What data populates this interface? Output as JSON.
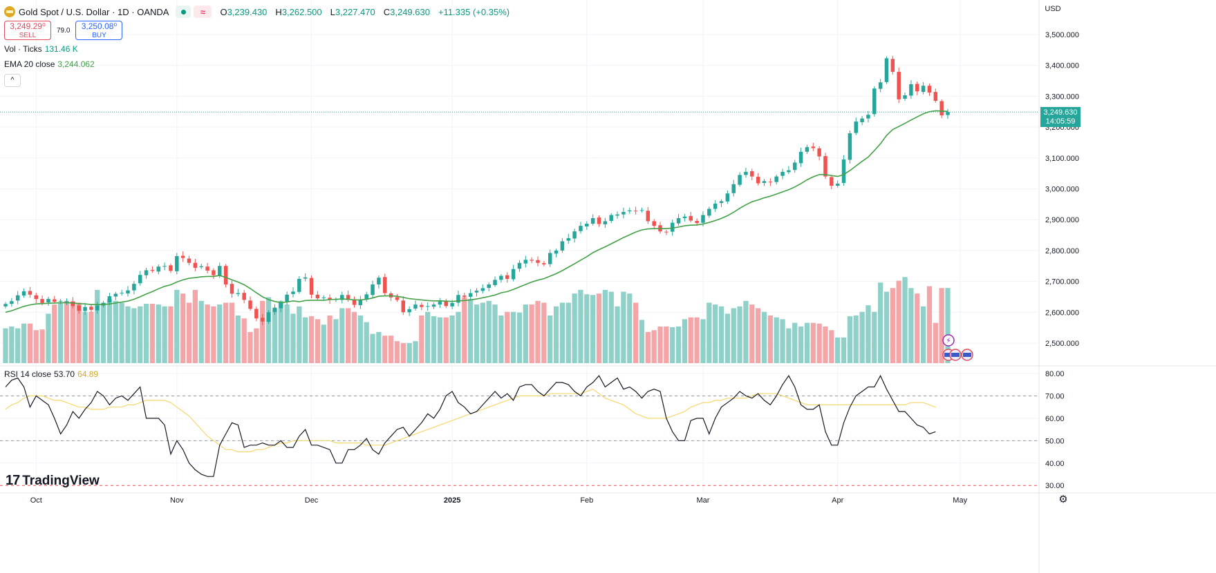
{
  "header": {
    "symbol": "Gold Spot / U.S. Dollar · 1D · OANDA",
    "wave_icon": "≈",
    "o_label": "O",
    "o_value": "3,239.430",
    "h_label": "H",
    "h_value": "3,262.500",
    "l_label": "L",
    "l_value": "3,227.470",
    "c_label": "C",
    "c_value": "3,249.630",
    "change": "+11.335 (+0.35%)"
  },
  "trade": {
    "sell_price": "3,249.29⁰",
    "sell_label": "SELL",
    "spread": "79.0",
    "buy_price": "3,250.08⁰",
    "buy_label": "BUY"
  },
  "indicators": {
    "vol_label": "Vol · Ticks",
    "vol_value": "131.46 K",
    "ema_label": "EMA 20 close",
    "ema_value": "3,244.062",
    "collapse_icon": "^",
    "rsi_label": "RSI 14 close",
    "rsi_value": "53.70",
    "rsi_ma_value": "64.89"
  },
  "axis": {
    "currency": "USD",
    "last_price": "3,249.630",
    "countdown": "14:05:59"
  },
  "brand": {
    "mark": "17",
    "name": "TradingView"
  },
  "icons": {
    "settings": "gear-icon",
    "events": [
      "lightning-icon",
      "us-flag-icon",
      "us-flag-icon",
      "us-flag-icon"
    ]
  },
  "colors": {
    "up": "#26a69a",
    "down": "#ef5350",
    "vol_up": "#8fd0c8",
    "vol_down": "#f4a5a7",
    "ema": "#43a047",
    "rsi": "#131722",
    "rsi_ma": "#f5d76e",
    "grid": "#f0f3fa"
  },
  "chart_data": [
    {
      "type": "candlestick",
      "title": "Gold Spot / U.S. Dollar · 1D · OANDA",
      "ylim": [
        2450000,
        3550000
      ],
      "ylim_note": "y in price units",
      "yticks": [
        "3,500.000",
        "3,400.000",
        "3,300.000",
        "3,200.000",
        "3,100.000",
        "3,000.000",
        "2,900.000",
        "2,800.000",
        "2,700.000",
        "2,600.000",
        "2,500.000"
      ],
      "ytick_values": [
        3500,
        3400,
        3300,
        3200,
        3100,
        3000,
        2900,
        2800,
        2700,
        2600,
        2500
      ],
      "xticks": [
        "Oct",
        "Nov",
        "Dec",
        "2025",
        "Feb",
        "Mar",
        "Apr",
        "May"
      ],
      "xtick_index": [
        5,
        28,
        50,
        73,
        95,
        114,
        136,
        156
      ],
      "closes": [
        2627,
        2636,
        2655,
        2668,
        2657,
        2643,
        2630,
        2643,
        2634,
        2637,
        2635,
        2620,
        2605,
        2617,
        2608,
        2622,
        2630,
        2652,
        2660,
        2663,
        2671,
        2692,
        2721,
        2736,
        2734,
        2748,
        2750,
        2734,
        2782,
        2776,
        2760,
        2744,
        2749,
        2735,
        2720,
        2750,
        2690,
        2660,
        2662,
        2640,
        2611,
        2580,
        2570,
        2600,
        2615,
        2632,
        2657,
        2667,
        2708,
        2713,
        2657,
        2645,
        2648,
        2640,
        2642,
        2656,
        2640,
        2624,
        2640,
        2658,
        2690,
        2712,
        2662,
        2648,
        2640,
        2600,
        2610,
        2625,
        2617,
        2620,
        2625,
        2635,
        2620,
        2630,
        2656,
        2650,
        2662,
        2670,
        2678,
        2690,
        2705,
        2718,
        2708,
        2740,
        2760,
        2770,
        2767,
        2760,
        2755,
        2792,
        2800,
        2830,
        2840,
        2862,
        2880,
        2887,
        2905,
        2886,
        2895,
        2915,
        2917,
        2925,
        2930,
        2928,
        2931,
        2895,
        2880,
        2862,
        2860,
        2890,
        2905,
        2910,
        2897,
        2889,
        2915,
        2935,
        2952,
        2960,
        2985,
        3015,
        3045,
        3055,
        3040,
        3018,
        3025,
        3022,
        3040,
        3055,
        3060,
        3085,
        3120,
        3135,
        3132,
        3105,
        3040,
        3010,
        3017,
        3095,
        3180,
        3218,
        3228,
        3240,
        3325,
        3345,
        3423,
        3379,
        3290,
        3303,
        3339,
        3316,
        3334,
        3312,
        3285,
        3238,
        3249
      ],
      "ema20_close": [
        2600,
        2605,
        2612,
        2619,
        2624,
        2627,
        2628,
        2629,
        2630,
        2631,
        2631,
        2630,
        2628,
        2627,
        2625,
        2625,
        2625,
        2627,
        2630,
        2633,
        2636,
        2642,
        2650,
        2659,
        2667,
        2676,
        2684,
        2689,
        2698,
        2705,
        2710,
        2712,
        2715,
        2716,
        2716,
        2719,
        2713,
        2705,
        2698,
        2689,
        2677,
        2663,
        2650,
        2641,
        2635,
        2631,
        2633,
        2637,
        2634,
        2638,
        2639,
        2639,
        2639,
        2641,
        2642,
        2643,
        2642,
        2640,
        2640,
        2642,
        2646,
        2652,
        2653,
        2653,
        2652,
        2648,
        2644,
        2642,
        2640,
        2638,
        2637,
        2637,
        2636,
        2635,
        2637,
        2638,
        2640,
        2643,
        2647,
        2651,
        2656,
        2663,
        2667,
        2674,
        2682,
        2690,
        2698,
        2704,
        2709,
        2717,
        2725,
        2735,
        2746,
        2757,
        2769,
        2780,
        2793,
        2803,
        2812,
        2822,
        2832,
        2842,
        2851,
        2860,
        2867,
        2870,
        2871,
        2871,
        2871,
        2873,
        2876,
        2880,
        2882,
        2883,
        2886,
        2891,
        2897,
        2904,
        2913,
        2924,
        2937,
        2948,
        2958,
        2964,
        2971,
        2976,
        2983,
        2990,
        2997,
        3006,
        3017,
        3029,
        3039,
        3046,
        3046,
        3043,
        3040,
        3046,
        3059,
        3074,
        3089,
        3103,
        3124,
        3146,
        3173,
        3192,
        3202,
        3212,
        3223,
        3233,
        3243,
        3250,
        3253,
        3252,
        3251
      ]
    },
    {
      "type": "bar",
      "title": "Vol · Ticks",
      "ylim": [
        0,
        300000
      ],
      "last_value": "131.46 K",
      "values": [
        95,
        100,
        95,
        108,
        108,
        90,
        92,
        135,
        160,
        165,
        170,
        168,
        165,
        140,
        140,
        200,
        165,
        175,
        170,
        165,
        155,
        150,
        155,
        162,
        162,
        160,
        155,
        155,
        200,
        190,
        165,
        200,
        170,
        160,
        155,
        160,
        165,
        165,
        130,
        122,
        85,
        95,
        170,
        180,
        150,
        170,
        160,
        135,
        155,
        125,
        128,
        120,
        105,
        130,
        120,
        150,
        150,
        140,
        130,
        112,
        80,
        85,
        75,
        75,
        60,
        55,
        55,
        60,
        130,
        140,
        128,
        125,
        125,
        130,
        140,
        180,
        175,
        160,
        165,
        170,
        160,
        130,
        140,
        140,
        138,
        160,
        160,
        170,
        165,
        130,
        155,
        165,
        165,
        190,
        200,
        188,
        186,
        190,
        200,
        195,
        155,
        195,
        190,
        165,
        118,
        85,
        90,
        100,
        100,
        98,
        100,
        120,
        125,
        125,
        120,
        165,
        160,
        155,
        135,
        150,
        155,
        170,
        160,
        150,
        140,
        130,
        125,
        120,
        95,
        110,
        100,
        110,
        110,
        108,
        100,
        90,
        70,
        70,
        128,
        130,
        140,
        158,
        140,
        220,
        195,
        205,
        225,
        235,
        205,
        190,
        155,
        210,
        110,
        205,
        205,
        185,
        240,
        245,
        235,
        240,
        210,
        195
      ],
      "note": "bar heights read from the chart; values are relative tick-volume levels"
    },
    {
      "type": "line",
      "title": "RSI 14 close",
      "ylim": [
        25,
        82
      ],
      "yticks": [
        "80.00",
        "70.00",
        "60.00",
        "50.00",
        "40.00",
        "30.00"
      ],
      "ytick_values": [
        80,
        70,
        60,
        50,
        40,
        30
      ],
      "reference_lines": [
        70,
        50,
        30
      ],
      "series": [
        {
          "name": "RSI 14 close",
          "last_value": "53.70",
          "values": [
            74,
            77,
            78,
            74,
            65,
            70,
            68,
            66,
            60,
            53,
            57,
            63,
            60,
            64,
            67,
            72,
            70,
            66,
            69,
            70,
            68,
            71,
            74,
            60,
            60,
            60,
            57,
            44,
            50,
            46,
            40,
            37,
            35,
            34,
            34,
            48,
            53,
            58,
            57,
            47,
            48,
            48,
            49,
            48,
            48,
            50,
            47,
            47,
            52,
            55,
            48,
            48,
            47,
            46,
            40,
            40,
            46,
            46,
            48,
            51,
            46,
            44,
            49,
            52,
            55,
            56,
            52,
            55,
            58,
            62,
            60,
            64,
            70,
            72,
            67,
            65,
            62,
            63,
            66,
            69,
            72,
            69,
            71,
            68,
            74,
            75,
            75,
            72,
            70,
            73,
            76,
            76,
            75,
            72,
            70,
            74,
            76,
            79,
            74,
            76,
            78,
            73,
            74,
            72,
            69,
            72,
            73,
            72,
            60,
            54,
            50,
            50,
            59,
            60,
            60,
            53,
            60,
            65,
            67,
            69,
            72,
            70,
            69,
            71,
            68,
            66,
            70,
            75,
            79,
            74,
            66,
            64,
            64,
            66,
            54,
            48,
            48,
            58,
            65,
            70,
            72,
            74,
            74,
            79,
            73,
            68,
            63,
            63,
            60,
            57,
            56,
            53,
            54
          ]
        },
        {
          "name": "RSI MA",
          "last_value": "64.89",
          "values": [
            64,
            66,
            67,
            69,
            70,
            70,
            70,
            69,
            68,
            68,
            67,
            66,
            65,
            65,
            64,
            64,
            64,
            65,
            65,
            65,
            66,
            66,
            67,
            68,
            68,
            68,
            68,
            67,
            65,
            63,
            61,
            58,
            55,
            52,
            50,
            48,
            46,
            46,
            45,
            45,
            45,
            46,
            46,
            47,
            48,
            49,
            49,
            50,
            50,
            50,
            50,
            50,
            50,
            50,
            49,
            49,
            49,
            49,
            49,
            48,
            48,
            48,
            48,
            49,
            50,
            51,
            52,
            53,
            54,
            55,
            56,
            57,
            58,
            59,
            60,
            61,
            62,
            63,
            64,
            65,
            66,
            67,
            68,
            69,
            70,
            70,
            70,
            70,
            70,
            71,
            71,
            71,
            71,
            71,
            71,
            72,
            73,
            71,
            69,
            68,
            67,
            66,
            64,
            62,
            61,
            60,
            60,
            60,
            60,
            61,
            62,
            63,
            65,
            66,
            67,
            67,
            68,
            68,
            69,
            69,
            69,
            69,
            70,
            71,
            71,
            71,
            71,
            70,
            69,
            68,
            67,
            66,
            66,
            66,
            66,
            66,
            66,
            66,
            66,
            66,
            66,
            66,
            66,
            66,
            66,
            66,
            66,
            66,
            67,
            67,
            67,
            66,
            65
          ]
        }
      ]
    }
  ]
}
